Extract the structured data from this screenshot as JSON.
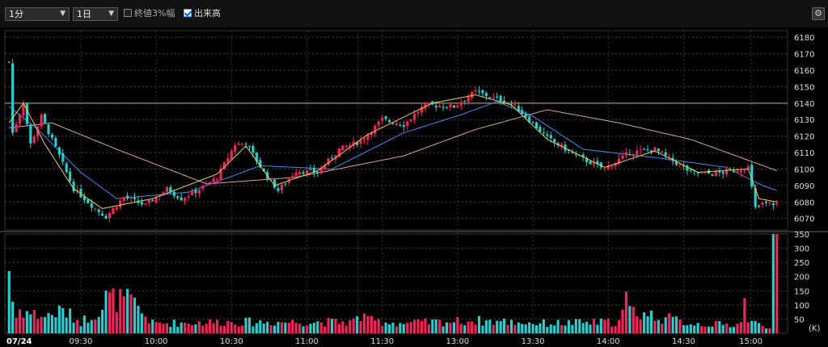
{
  "toolbar": {
    "interval": "1分",
    "range": "1日",
    "log_label": "終値3%幅",
    "log_checked": false,
    "volume_label": "出来高",
    "volume_checked": true
  },
  "colors": {
    "up": "#ff1f5a",
    "down": "#1fd3d3",
    "ma_short": "#e8d34a",
    "ma_mid": "#3b8df0",
    "ma_long": "#d9a0a0",
    "ref": "#e0b040"
  },
  "chart_data": {
    "type": "candlestick",
    "date_label": "07/24",
    "x_ticks": [
      "09:30",
      "10:00",
      "10:30",
      "11:00",
      "11:30",
      "13:00",
      "13:30",
      "14:00",
      "14:30",
      "15:00"
    ],
    "price_ticks": [
      6180,
      6170,
      6160,
      6150,
      6140,
      6130,
      6120,
      6110,
      6100,
      6090,
      6080,
      6070
    ],
    "volume_ticks": [
      350,
      300,
      250,
      200,
      150,
      100,
      50
    ],
    "volume_unit": "(K)",
    "price_range": [
      6063,
      6184
    ],
    "volume_range": [
      0,
      350
    ],
    "reference_price": 6140,
    "price_anchors": [
      [
        0,
        6165
      ],
      [
        1,
        6122
      ],
      [
        4,
        6140
      ],
      [
        6,
        6115
      ],
      [
        9,
        6132
      ],
      [
        14,
        6108
      ],
      [
        18,
        6088
      ],
      [
        24,
        6076
      ],
      [
        27,
        6071
      ],
      [
        32,
        6083
      ],
      [
        38,
        6078
      ],
      [
        44,
        6088
      ],
      [
        48,
        6082
      ],
      [
        54,
        6089
      ],
      [
        58,
        6095
      ],
      [
        63,
        6115
      ],
      [
        66,
        6116
      ],
      [
        71,
        6098
      ],
      [
        75,
        6087
      ],
      [
        80,
        6099
      ],
      [
        86,
        6098
      ],
      [
        92,
        6112
      ],
      [
        98,
        6117
      ],
      [
        104,
        6130
      ],
      [
        110,
        6127
      ],
      [
        116,
        6139
      ],
      [
        124,
        6138
      ],
      [
        130,
        6147
      ],
      [
        134,
        6144
      ],
      [
        140,
        6140
      ],
      [
        144,
        6132
      ],
      [
        150,
        6119
      ],
      [
        158,
        6108
      ],
      [
        166,
        6100
      ],
      [
        173,
        6110
      ],
      [
        180,
        6112
      ],
      [
        185,
        6105
      ],
      [
        190,
        6098
      ],
      [
        196,
        6097
      ],
      [
        202,
        6099
      ],
      [
        206,
        6101
      ],
      [
        208,
        6076
      ],
      [
        210,
        6079
      ],
      [
        214,
        6079
      ]
    ],
    "ma_short_anchors": [
      [
        0,
        6128
      ],
      [
        4,
        6140
      ],
      [
        10,
        6115
      ],
      [
        18,
        6088
      ],
      [
        26,
        6076
      ],
      [
        40,
        6082
      ],
      [
        58,
        6097
      ],
      [
        66,
        6114
      ],
      [
        74,
        6090
      ],
      [
        86,
        6099
      ],
      [
        100,
        6121
      ],
      [
        118,
        6140
      ],
      [
        130,
        6145
      ],
      [
        140,
        6139
      ],
      [
        150,
        6118
      ],
      [
        166,
        6101
      ],
      [
        180,
        6111
      ],
      [
        192,
        6098
      ],
      [
        206,
        6100
      ],
      [
        209,
        6082
      ],
      [
        214,
        6080
      ]
    ],
    "ma_mid_anchors": [
      [
        0,
        6138
      ],
      [
        8,
        6124
      ],
      [
        20,
        6098
      ],
      [
        30,
        6082
      ],
      [
        50,
        6086
      ],
      [
        70,
        6102
      ],
      [
        90,
        6100
      ],
      [
        110,
        6122
      ],
      [
        126,
        6133
      ],
      [
        136,
        6141
      ],
      [
        146,
        6132
      ],
      [
        160,
        6112
      ],
      [
        180,
        6107
      ],
      [
        200,
        6101
      ],
      [
        210,
        6090
      ],
      [
        214,
        6087
      ]
    ],
    "ma_long_anchors": [
      [
        0,
        6125
      ],
      [
        12,
        6128
      ],
      [
        30,
        6112
      ],
      [
        55,
        6091
      ],
      [
        80,
        6095
      ],
      [
        110,
        6108
      ],
      [
        130,
        6124
      ],
      [
        150,
        6136
      ],
      [
        170,
        6128
      ],
      [
        190,
        6118
      ],
      [
        214,
        6099
      ]
    ],
    "volume_anchors": [
      [
        0,
        230
      ],
      [
        1,
        120
      ],
      [
        2,
        55
      ],
      [
        3,
        85
      ],
      [
        6,
        70
      ],
      [
        10,
        60
      ],
      [
        15,
        80
      ],
      [
        20,
        40
      ],
      [
        26,
        90
      ],
      [
        27,
        125
      ],
      [
        34,
        112
      ],
      [
        40,
        35
      ],
      [
        60,
        40
      ],
      [
        75,
        40
      ],
      [
        95,
        40
      ],
      [
        98,
        55
      ],
      [
        99,
        80
      ],
      [
        100,
        45
      ],
      [
        110,
        35
      ],
      [
        130,
        45
      ],
      [
        150,
        35
      ],
      [
        170,
        40
      ],
      [
        172,
        115
      ],
      [
        173,
        80
      ],
      [
        190,
        35
      ],
      [
        200,
        30
      ],
      [
        204,
        35
      ],
      [
        205,
        165
      ],
      [
        206,
        40
      ],
      [
        212,
        25
      ],
      [
        213,
        345
      ],
      [
        214,
        340
      ]
    ]
  }
}
